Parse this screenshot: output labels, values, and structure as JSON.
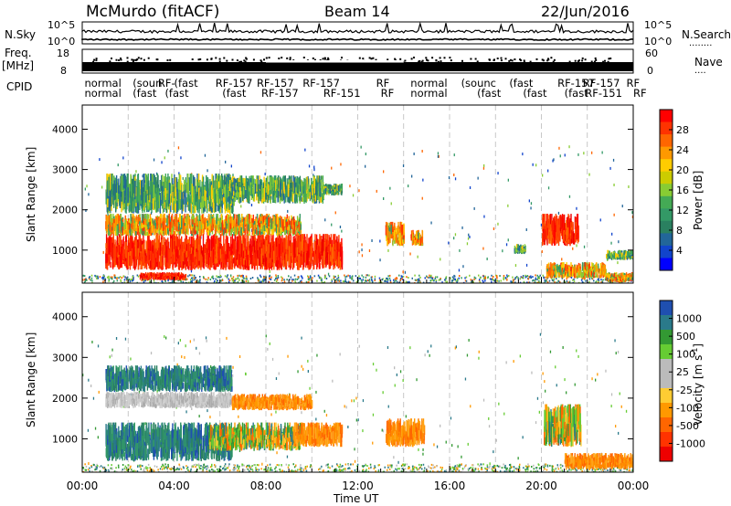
{
  "header": {
    "station": "McMurdo (fitACF)",
    "beam": "Beam 14",
    "date": "22/Jun/2016"
  },
  "side_labels": {
    "nsky": "N.Sky",
    "freq": "Freq.",
    "mhz": "[MHz]",
    "cpid": "CPID",
    "nsearch": "N.Search",
    "nsearch_dots": "........",
    "nave": "Nave",
    "nave_dots": "...."
  },
  "scales": {
    "noise_top": "10^5",
    "noise_bottom": "10^0",
    "noise_top_r": "10^5",
    "noise_bottom_r": "10^0",
    "freq_top": "18",
    "freq_bottom": "8",
    "nave_top": "60",
    "nave_bottom": "0"
  },
  "cpid_row1": [
    {
      "t": "normal",
      "h": 0.1
    },
    {
      "t": "(soun",
      "h": 2.2
    },
    {
      "t": "RF-",
      "h": 3.3
    },
    {
      "t": "(fast",
      "h": 4.0
    },
    {
      "t": "RF-157",
      "h": 5.8
    },
    {
      "t": "RF-157",
      "h": 7.6
    },
    {
      "t": "RF-157",
      "h": 9.6
    },
    {
      "t": "RF",
      "h": 12.8
    },
    {
      "t": "normal",
      "h": 14.3
    },
    {
      "t": "(sounc",
      "h": 16.5
    },
    {
      "t": "(fast",
      "h": 18.6
    },
    {
      "t": "RF-157",
      "h": 20.7
    },
    {
      "t": "RF-157",
      "h": 21.8
    },
    {
      "t": "RF",
      "h": 23.7
    }
  ],
  "cpid_row2": [
    {
      "t": "normal",
      "h": 0.1
    },
    {
      "t": "(fast",
      "h": 2.2
    },
    {
      "t": "(fast",
      "h": 3.6
    },
    {
      "t": "(fast",
      "h": 6.1
    },
    {
      "t": "RF-157",
      "h": 7.8
    },
    {
      "t": "RF-151",
      "h": 10.5
    },
    {
      "t": "RF",
      "h": 13.0
    },
    {
      "t": "normal",
      "h": 14.3
    },
    {
      "t": "(fast",
      "h": 17.2
    },
    {
      "t": "(fast",
      "h": 19.2
    },
    {
      "t": "(fast",
      "h": 21.0
    },
    {
      "t": "RF-151",
      "h": 21.9
    },
    {
      "t": "RF",
      "h": 24.0
    }
  ],
  "chart_data": [
    {
      "type": "heatmap",
      "title": "Power",
      "xlabel": "Time UT",
      "ylabel": "Slant Range [km]",
      "xlim_hours": [
        0,
        24
      ],
      "ylim": [
        180,
        4600
      ],
      "yticks": [
        1000,
        2000,
        3000,
        4000
      ],
      "colorbar_label": "Power [dB]",
      "colorbar_ticks": [
        "28",
        "24",
        "20",
        "16",
        "12",
        "8",
        "4"
      ],
      "colorbar_colors": [
        "#ff0000",
        "#ff3300",
        "#ff6600",
        "#ff9900",
        "#ffcc00",
        "#cccc00",
        "#88cc33",
        "#44aa55",
        "#339966",
        "#2a8060",
        "#226699",
        "#1144cc",
        "#0000ff"
      ],
      "echo_regions": [
        {
          "h": [
            1.0,
            11.3
          ],
          "r": [
            500,
            1400
          ],
          "lvl": "strong"
        },
        {
          "h": [
            1.0,
            9.5
          ],
          "r": [
            1350,
            1900
          ],
          "lvl": "medium"
        },
        {
          "h": [
            1.0,
            6.6
          ],
          "r": [
            1900,
            2900
          ],
          "lvl": "weak"
        },
        {
          "h": [
            2.5,
            4.5
          ],
          "r": [
            250,
            450
          ],
          "lvl": "strong"
        },
        {
          "h": [
            5.8,
            10.5
          ],
          "r": [
            2150,
            2850
          ],
          "lvl": "weak"
        },
        {
          "h": [
            10.5,
            11.3
          ],
          "r": [
            2350,
            2650
          ],
          "lvl": "weak"
        },
        {
          "h": [
            13.2,
            14.0
          ],
          "r": [
            1100,
            1700
          ],
          "lvl": "medium"
        },
        {
          "h": [
            14.3,
            14.8
          ],
          "r": [
            1100,
            1500
          ],
          "lvl": "medium"
        },
        {
          "h": [
            18.8,
            19.3
          ],
          "r": [
            900,
            1150
          ],
          "lvl": "weak"
        },
        {
          "h": [
            20.0,
            21.6
          ],
          "r": [
            1100,
            1900
          ],
          "lvl": "strong"
        },
        {
          "h": [
            20.2,
            22.8
          ],
          "r": [
            300,
            700
          ],
          "lvl": "medium"
        },
        {
          "h": [
            22.8,
            24.0
          ],
          "r": [
            200,
            450
          ],
          "lvl": "medium"
        },
        {
          "h": [
            22.8,
            24.0
          ],
          "r": [
            750,
            1000
          ],
          "lvl": "weak"
        }
      ]
    },
    {
      "type": "heatmap",
      "title": "Velocity",
      "xlabel": "Time UT",
      "ylabel": "Slant Range [km]",
      "xlim_hours": [
        0,
        24
      ],
      "ylim": [
        180,
        4600
      ],
      "yticks": [
        1000,
        2000,
        3000,
        4000
      ],
      "colorbar_label": "Velocity [m s-1]",
      "colorbar_ticks": [
        "1000",
        "500",
        "100",
        "25",
        "-25",
        "-100",
        "-500",
        "-1000"
      ],
      "colorbar_colors": [
        "#1f4fb0",
        "#2a7a8a",
        "#339933",
        "#66cc33",
        "#bbbbbb",
        "#bbbbbb",
        "#ffcc33",
        "#ff9900",
        "#ff6600",
        "#ff3300",
        "#ee0000"
      ],
      "echo_regions": [
        {
          "h": [
            1.0,
            6.5
          ],
          "r": [
            450,
            1400
          ],
          "lvl": "green"
        },
        {
          "h": [
            5.5,
            9.5
          ],
          "r": [
            700,
            1400
          ],
          "lvl": "mixed"
        },
        {
          "h": [
            9.2,
            11.3
          ],
          "r": [
            800,
            1400
          ],
          "lvl": "orange"
        },
        {
          "h": [
            1.0,
            6.5
          ],
          "r": [
            1750,
            2150
          ],
          "lvl": "gray"
        },
        {
          "h": [
            1.0,
            6.5
          ],
          "r": [
            2150,
            2800
          ],
          "lvl": "green"
        },
        {
          "h": [
            6.5,
            10.0
          ],
          "r": [
            1700,
            2100
          ],
          "lvl": "orange"
        },
        {
          "h": [
            13.2,
            14.9
          ],
          "r": [
            800,
            1500
          ],
          "lvl": "orange"
        },
        {
          "h": [
            20.1,
            21.7
          ],
          "r": [
            800,
            1850
          ],
          "lvl": "mixed"
        },
        {
          "h": [
            21.0,
            24.0
          ],
          "r": [
            250,
            650
          ],
          "lvl": "orange"
        }
      ]
    }
  ],
  "x_ticks": [
    "00:00",
    "04:00",
    "08:00",
    "12:00",
    "16:00",
    "20:00",
    "00:00"
  ],
  "axis": {
    "xlabel": "Time UT",
    "ylabel": "Slant Range [km]",
    "power_label": "Power [dB]",
    "velocity_label": "Velocity [m s",
    "velocity_sup": "-1",
    "velocity_close": "]"
  }
}
